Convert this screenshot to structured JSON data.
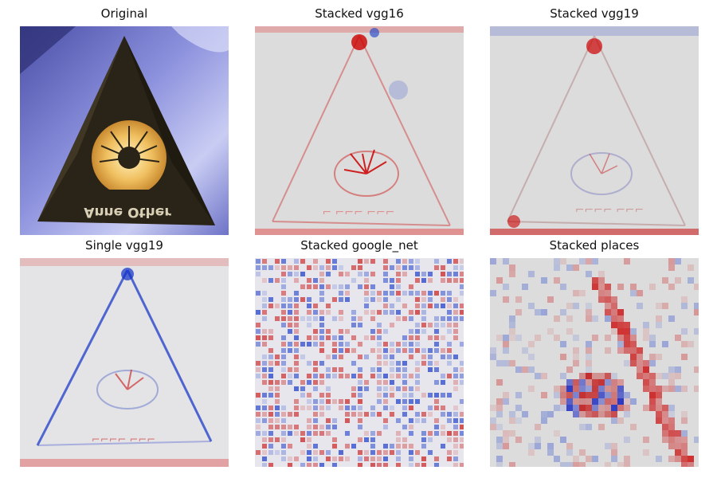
{
  "figure": {
    "panels": [
      {
        "id": "original",
        "title": "Original",
        "kind": "photo",
        "caption_text": "Anne Other"
      },
      {
        "id": "stacked-vgg16",
        "title": "Stacked vgg16",
        "kind": "heatmap",
        "dominant": "red"
      },
      {
        "id": "stacked-vgg19",
        "title": "Stacked vgg19",
        "kind": "heatmap",
        "dominant": "mixed"
      },
      {
        "id": "single-vgg19",
        "title": "Single vgg19",
        "kind": "heatmap",
        "dominant": "blue"
      },
      {
        "id": "stacked-google-net",
        "title": "Stacked google_net",
        "kind": "heatmap",
        "dominant": "noise"
      },
      {
        "id": "stacked-places",
        "title": "Stacked places",
        "kind": "heatmap",
        "dominant": "blocky"
      }
    ],
    "colors": {
      "positive": "#cc0000",
      "negative": "#0000cc",
      "neutral": "#dcdcdc",
      "photo_sky": "#7b7fd0",
      "photo_pyramid": "#2a2418",
      "photo_logo": "#e8b860"
    }
  }
}
